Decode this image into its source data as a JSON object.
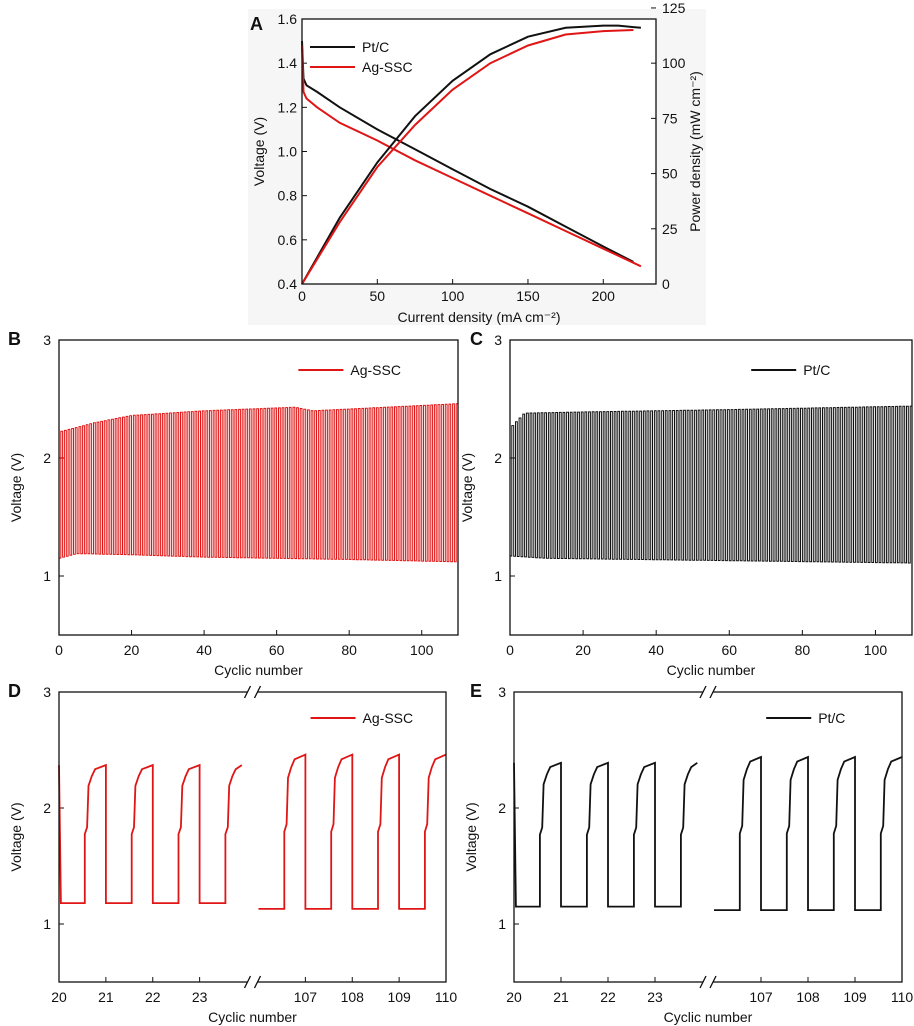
{
  "chart_data": [
    {
      "panel": "A",
      "type": "line",
      "xlabel": "Current density (mA cm⁻²)",
      "ylabel": "Voltage (V)",
      "y2label": "Power density (mW cm⁻²)",
      "xlim": [
        0,
        235
      ],
      "ylim": [
        0.4,
        1.6
      ],
      "y2lim": [
        0,
        120
      ],
      "xticks": [
        "0",
        "50",
        "100",
        "150",
        "200"
      ],
      "yticks": [
        "0.4",
        "0.6",
        "0.8",
        "1.0",
        "1.2",
        "1.4",
        "1.6"
      ],
      "y2ticks": [
        "0",
        "25",
        "50",
        "75",
        "100",
        "125"
      ],
      "legend_position": "top-left",
      "series": [
        {
          "name": "Pt/C",
          "color": "#111111",
          "axis": "left",
          "x": [
            0,
            1,
            3,
            10,
            25,
            50,
            75,
            100,
            125,
            150,
            175,
            200,
            220
          ],
          "y": [
            1.5,
            1.33,
            1.3,
            1.27,
            1.2,
            1.1,
            1.01,
            0.92,
            0.83,
            0.75,
            0.66,
            0.57,
            0.5
          ]
        },
        {
          "name": "Ag-SSC",
          "color": "#e01515",
          "axis": "left",
          "x": [
            0,
            1,
            3,
            10,
            25,
            50,
            75,
            100,
            125,
            150,
            175,
            200,
            225
          ],
          "y": [
            1.48,
            1.27,
            1.24,
            1.2,
            1.13,
            1.05,
            0.96,
            0.88,
            0.8,
            0.72,
            0.64,
            0.56,
            0.48
          ]
        },
        {
          "name": "Pt/C",
          "color": "#111111",
          "axis": "right",
          "x": [
            0,
            25,
            50,
            75,
            100,
            125,
            150,
            175,
            200,
            210,
            225
          ],
          "y": [
            0,
            30,
            55,
            76,
            92,
            104,
            112,
            116,
            117,
            117,
            116
          ]
        },
        {
          "name": "Ag-SSC",
          "color": "#e01515",
          "axis": "right",
          "x": [
            0,
            25,
            50,
            75,
            100,
            125,
            150,
            175,
            200,
            220
          ],
          "y": [
            0,
            28,
            53,
            72,
            88,
            100,
            108,
            113,
            114.5,
            115
          ]
        }
      ]
    },
    {
      "panel": "B",
      "type": "line",
      "xlabel": "Cyclic number",
      "ylabel": "Voltage (V)",
      "xlim": [
        0,
        110
      ],
      "ylim": [
        0.5,
        3
      ],
      "xticks": [
        "0",
        "20",
        "40",
        "60",
        "80",
        "100"
      ],
      "yticks": [
        "1",
        "2",
        "3"
      ],
      "legend_position": "top-right",
      "series": [
        {
          "name": "Ag-SSC",
          "color": "#e01515",
          "cycles": 110,
          "upper": [
            [
              0,
              2.22
            ],
            [
              10,
              2.3
            ],
            [
              20,
              2.36
            ],
            [
              40,
              2.4
            ],
            [
              65,
              2.43
            ],
            [
              70,
              2.4
            ],
            [
              110,
              2.46
            ]
          ],
          "lower": [
            [
              0,
              1.15
            ],
            [
              5,
              1.19
            ],
            [
              20,
              1.18
            ],
            [
              40,
              1.16
            ],
            [
              80,
              1.14
            ],
            [
              110,
              1.12
            ]
          ]
        }
      ]
    },
    {
      "panel": "C",
      "type": "line",
      "xlabel": "Cyclic number",
      "ylabel": "Voltage (V)",
      "xlim": [
        0,
        110
      ],
      "ylim": [
        0.5,
        3
      ],
      "xticks": [
        "0",
        "20",
        "40",
        "60",
        "80",
        "100"
      ],
      "yticks": [
        "1",
        "2",
        "3"
      ],
      "legend_position": "top-right",
      "series": [
        {
          "name": "Pt/C",
          "color": "#111111",
          "cycles": 110,
          "upper": [
            [
              0,
              2.25
            ],
            [
              4,
              2.38
            ],
            [
              20,
              2.39
            ],
            [
              60,
              2.41
            ],
            [
              110,
              2.44
            ]
          ],
          "lower": [
            [
              0,
              1.17
            ],
            [
              10,
              1.15
            ],
            [
              60,
              1.13
            ],
            [
              110,
              1.11
            ]
          ]
        }
      ]
    },
    {
      "panel": "D",
      "type": "line",
      "xlabel": "Cyclic number",
      "ylabel": "Voltage (V)",
      "ylim": [
        0.5,
        3
      ],
      "xticks": [
        "20",
        "21",
        "22",
        "23",
        "107",
        "108",
        "109",
        "110"
      ],
      "yticks": [
        "1",
        "2",
        "3"
      ],
      "axis_break": "between 23 and 107",
      "legend_position": "top-right",
      "series": [
        {
          "name": "Ag-SSC",
          "color": "#e01515",
          "segments": [
            {
              "x_start": 20,
              "x_end": 23.9,
              "high": 2.37,
              "low": 1.18
            },
            {
              "x_start": 106,
              "x_end": 110,
              "high": 2.46,
              "low": 1.13
            }
          ]
        }
      ]
    },
    {
      "panel": "E",
      "type": "line",
      "xlabel": "Cyclic number",
      "ylabel": "Voltage (V)",
      "ylim": [
        0.5,
        3
      ],
      "xticks": [
        "20",
        "21",
        "22",
        "23",
        "107",
        "108",
        "109",
        "110"
      ],
      "yticks": [
        "1",
        "2",
        "3"
      ],
      "axis_break": "between 23 and 107",
      "legend_position": "top-right",
      "series": [
        {
          "name": "Pt/C",
          "color": "#111111",
          "segments": [
            {
              "x_start": 20,
              "x_end": 23.9,
              "high": 2.39,
              "low": 1.15
            },
            {
              "x_start": 106,
              "x_end": 110,
              "high": 2.44,
              "low": 1.12
            }
          ]
        }
      ]
    }
  ]
}
